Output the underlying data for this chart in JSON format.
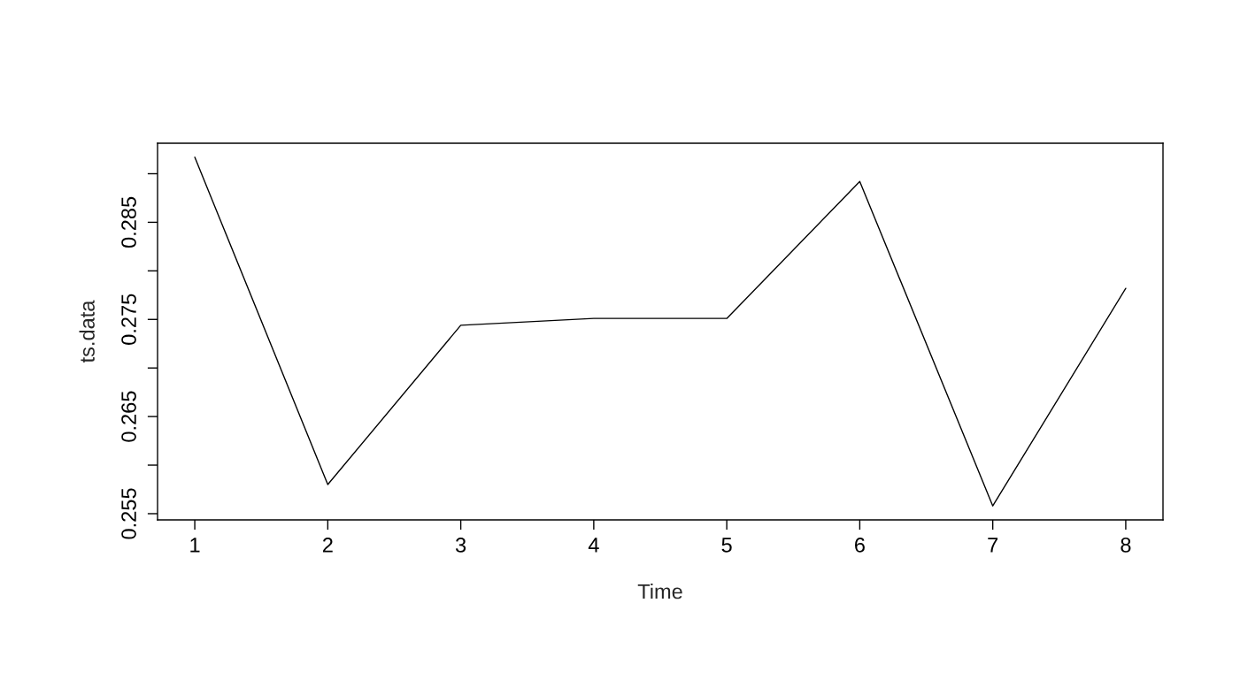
{
  "chart_data": {
    "type": "line",
    "xlabel": "Time",
    "ylabel": "ts.data",
    "x": [
      1,
      2,
      3,
      4,
      5,
      6,
      7,
      8
    ],
    "series": [
      {
        "color": "#000000",
        "values": [
          0.2917,
          0.258,
          0.2744,
          0.2751,
          0.2751,
          0.2892,
          0.2558,
          0.2782
        ]
      }
    ],
    "xlim": [
      0.72,
      8.28
    ],
    "ylim": [
      0.25436,
      0.29314
    ],
    "xticks": [
      1,
      2,
      3,
      4,
      5,
      6,
      7,
      8
    ],
    "yticks": [
      0.255,
      {
        "value": 0.26,
        "label": null
      },
      0.265,
      {
        "value": 0.27,
        "label": null
      },
      0.275,
      {
        "value": 0.28,
        "label": null
      },
      0.285,
      {
        "value": 0.29,
        "label": null
      }
    ],
    "grid": false,
    "marker": "none",
    "line_style": "solid"
  }
}
